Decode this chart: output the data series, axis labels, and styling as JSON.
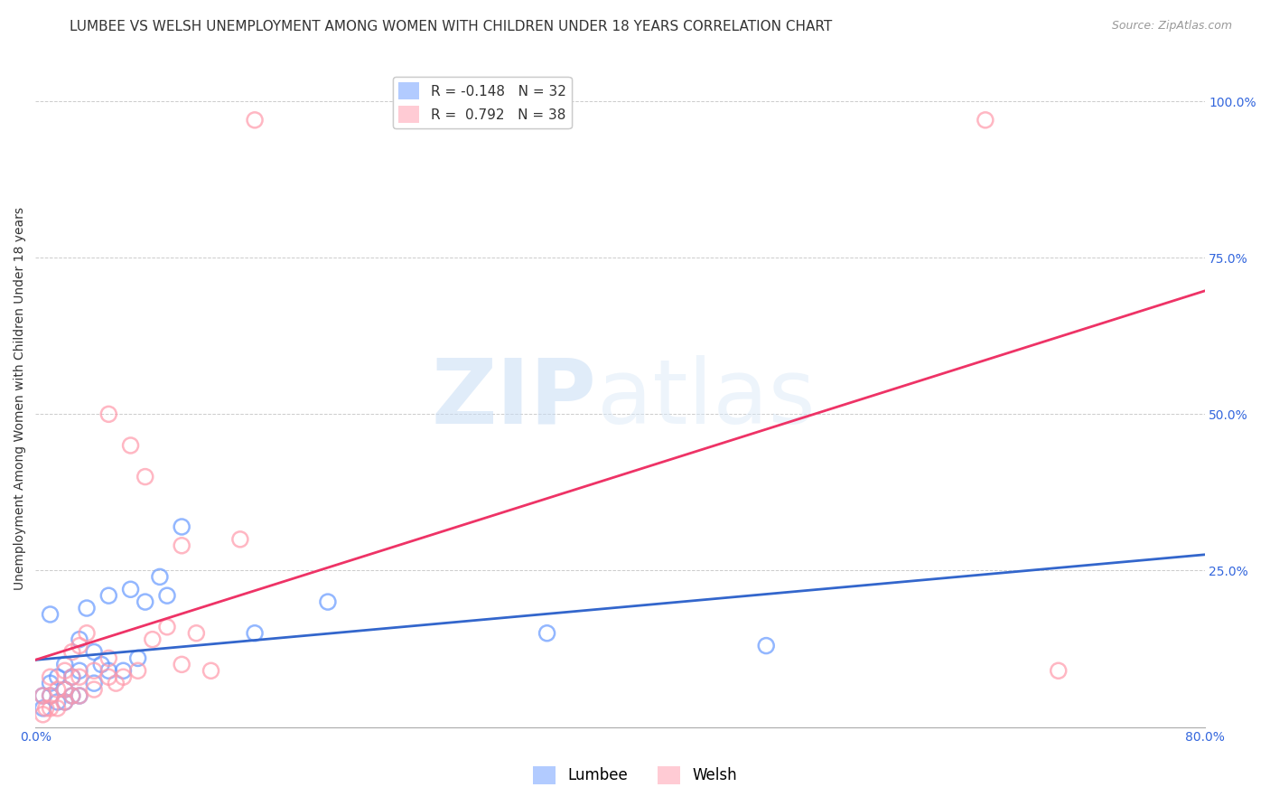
{
  "title": "LUMBEE VS WELSH UNEMPLOYMENT AMONG WOMEN WITH CHILDREN UNDER 18 YEARS CORRELATION CHART",
  "source": "Source: ZipAtlas.com",
  "ylabel": "Unemployment Among Women with Children Under 18 years",
  "xlim": [
    0.0,
    0.8
  ],
  "ylim": [
    0.0,
    1.05
  ],
  "lumbee_R": "-0.148",
  "lumbee_N": "32",
  "welsh_R": "0.792",
  "welsh_N": "38",
  "lumbee_color": "#6699ff",
  "welsh_color": "#ff99aa",
  "lumbee_line_color": "#3366cc",
  "welsh_line_color": "#ee3366",
  "background_color": "#ffffff",
  "lumbee_x": [
    0.005,
    0.005,
    0.01,
    0.01,
    0.01,
    0.015,
    0.015,
    0.02,
    0.02,
    0.02,
    0.025,
    0.025,
    0.03,
    0.03,
    0.03,
    0.035,
    0.04,
    0.04,
    0.045,
    0.05,
    0.05,
    0.06,
    0.065,
    0.07,
    0.075,
    0.085,
    0.09,
    0.1,
    0.15,
    0.2,
    0.35,
    0.5
  ],
  "lumbee_y": [
    0.03,
    0.05,
    0.05,
    0.07,
    0.18,
    0.04,
    0.08,
    0.04,
    0.06,
    0.1,
    0.05,
    0.08,
    0.05,
    0.09,
    0.14,
    0.19,
    0.07,
    0.12,
    0.1,
    0.09,
    0.21,
    0.09,
    0.22,
    0.11,
    0.2,
    0.24,
    0.21,
    0.32,
    0.15,
    0.2,
    0.15,
    0.13
  ],
  "welsh_x": [
    0.005,
    0.005,
    0.007,
    0.01,
    0.01,
    0.01,
    0.015,
    0.015,
    0.02,
    0.02,
    0.02,
    0.025,
    0.025,
    0.025,
    0.03,
    0.03,
    0.03,
    0.035,
    0.04,
    0.04,
    0.05,
    0.05,
    0.05,
    0.055,
    0.06,
    0.065,
    0.07,
    0.075,
    0.08,
    0.09,
    0.1,
    0.1,
    0.11,
    0.12,
    0.14,
    0.15,
    0.65,
    0.7
  ],
  "welsh_y": [
    0.02,
    0.05,
    0.03,
    0.03,
    0.05,
    0.08,
    0.03,
    0.06,
    0.04,
    0.06,
    0.09,
    0.05,
    0.08,
    0.12,
    0.05,
    0.08,
    0.13,
    0.15,
    0.06,
    0.09,
    0.08,
    0.11,
    0.5,
    0.07,
    0.08,
    0.45,
    0.09,
    0.4,
    0.14,
    0.16,
    0.1,
    0.29,
    0.15,
    0.09,
    0.3,
    0.97,
    0.97,
    0.09
  ],
  "title_fontsize": 11,
  "axis_label_fontsize": 10,
  "tick_fontsize": 10,
  "legend_fontsize": 11
}
